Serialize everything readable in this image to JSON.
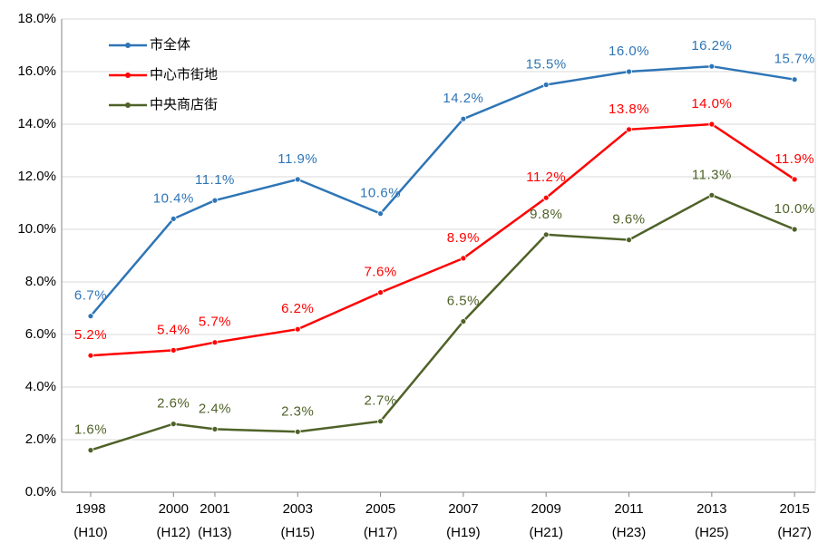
{
  "chart_data": {
    "type": "line",
    "x": [
      1998,
      2000,
      2001,
      2003,
      2005,
      2007,
      2009,
      2011,
      2013,
      2015
    ],
    "xlim": [
      1997.3,
      2015.5
    ],
    "xticks": [
      {
        "value": 1998,
        "label": "1998",
        "era": "(H10)"
      },
      {
        "value": 2000,
        "label": "2000",
        "era": "(H12)"
      },
      {
        "value": 2001,
        "label": "2001",
        "era": "(H13)"
      },
      {
        "value": 2003,
        "label": "2003",
        "era": "(H15)"
      },
      {
        "value": 2005,
        "label": "2005",
        "era": "(H17)"
      },
      {
        "value": 2007,
        "label": "2007",
        "era": "(H19)"
      },
      {
        "value": 2009,
        "label": "2009",
        "era": "(H21)"
      },
      {
        "value": 2011,
        "label": "2011",
        "era": "(H23)"
      },
      {
        "value": 2013,
        "label": "2013",
        "era": "(H25)"
      },
      {
        "value": 2015,
        "label": "2015",
        "era": "(H27)"
      }
    ],
    "ylim": [
      0,
      18
    ],
    "yticks": [
      {
        "value": 0,
        "label": "0.0%"
      },
      {
        "value": 2,
        "label": "2.0%"
      },
      {
        "value": 4,
        "label": "4.0%"
      },
      {
        "value": 6,
        "label": "6.0%"
      },
      {
        "value": 8,
        "label": "8.0%"
      },
      {
        "value": 10,
        "label": "10.0%"
      },
      {
        "value": 12,
        "label": "12.0%"
      },
      {
        "value": 14,
        "label": "14.0%"
      },
      {
        "value": 16,
        "label": "16.0%"
      },
      {
        "value": 18,
        "label": "18.0%"
      }
    ],
    "grid": true,
    "legend": "upper left",
    "series": [
      {
        "name": "市全体",
        "color": "#2e75b6",
        "values": [
          6.7,
          10.4,
          11.1,
          11.9,
          10.6,
          14.2,
          15.5,
          16.0,
          16.2,
          15.7
        ],
        "value_labels": [
          "6.7%",
          "10.4%",
          "11.1%",
          "11.9%",
          "10.6%",
          "14.2%",
          "15.5%",
          "16.0%",
          "16.2%",
          "15.7%"
        ]
      },
      {
        "name": "中心市街地",
        "color": "#ff0000",
        "values": [
          5.2,
          5.4,
          5.7,
          6.2,
          7.6,
          8.9,
          11.2,
          13.8,
          14.0,
          11.9
        ],
        "value_labels": [
          "5.2%",
          "5.4%",
          "5.7%",
          "6.2%",
          "7.6%",
          "8.9%",
          "11.2%",
          "13.8%",
          "14.0%",
          "11.9%"
        ]
      },
      {
        "name": "中央商店街",
        "color": "#4f6228",
        "values": [
          1.6,
          2.6,
          2.4,
          2.3,
          2.7,
          6.5,
          9.8,
          9.6,
          11.3,
          10.0
        ],
        "value_labels": [
          "1.6%",
          "2.6%",
          "2.4%",
          "2.3%",
          "2.7%",
          "6.5%",
          "9.8%",
          "9.6%",
          "11.3%",
          "10.0%"
        ]
      }
    ]
  }
}
